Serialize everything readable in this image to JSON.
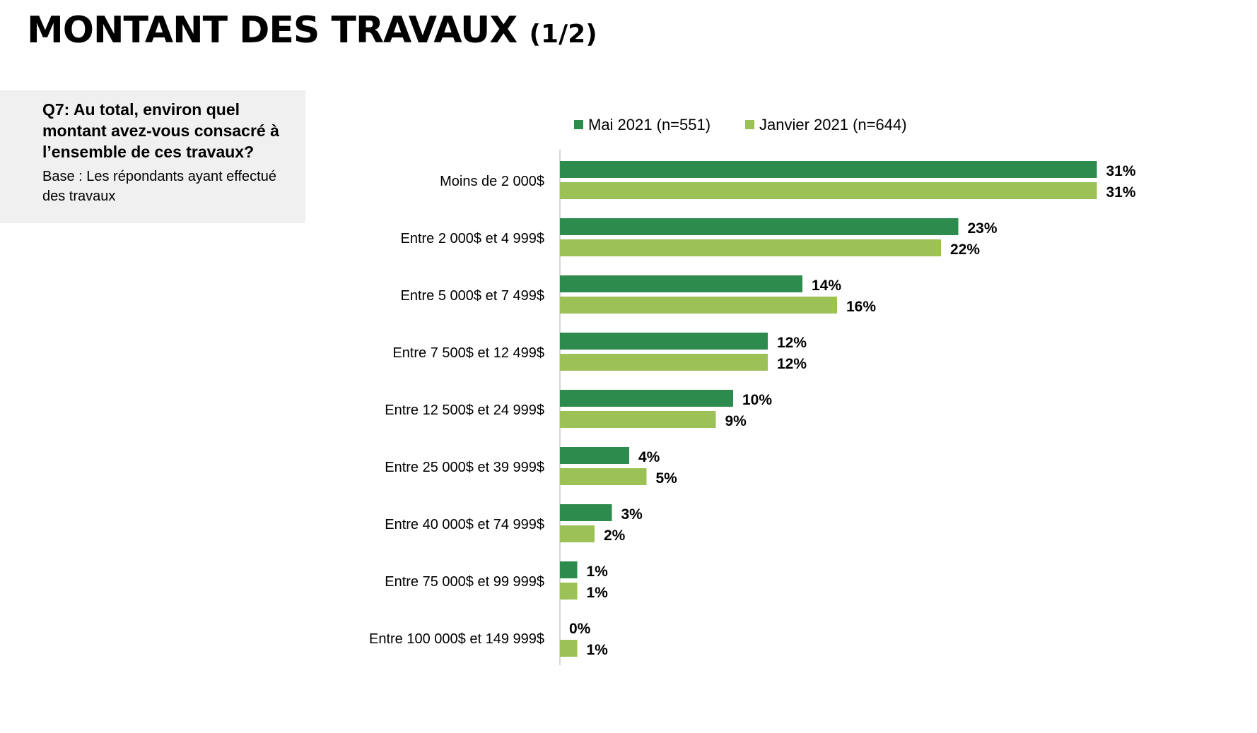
{
  "title": "MONTANT DES TRAVAUX",
  "title_suffix": "(1/2)",
  "question": "Q7: Au total, environ quel montant avez-vous consacré à l’ensemble de ces travaux?",
  "base": "Base : Les répondants ayant effectué des travaux",
  "chart_data": {
    "type": "bar",
    "orientation": "horizontal",
    "categories": [
      "Moins de 2 000$",
      "Entre 2 000$ et 4 999$",
      "Entre 5 000$ et 7 499$",
      "Entre 7 500$ et 12 499$",
      "Entre 12 500$ et 24 999$",
      "Entre 25 000$ et 39 999$",
      "Entre 40 000$ et 74 999$",
      "Entre 75 000$ et 99 999$",
      "Entre 100 000$ et 149 999$"
    ],
    "series": [
      {
        "name": "Mai 2021 (n=551)",
        "color": "#2e8b4e",
        "values": [
          31,
          23,
          14,
          12,
          10,
          4,
          3,
          1,
          0
        ]
      },
      {
        "name": "Janvier 2021 (n=644)",
        "color": "#9bc157",
        "values": [
          31,
          22,
          16,
          12,
          9,
          5,
          2,
          1,
          1
        ]
      }
    ],
    "value_suffix": "%",
    "xlim": [
      0,
      40
    ],
    "legend_position": "top",
    "grid": false
  }
}
